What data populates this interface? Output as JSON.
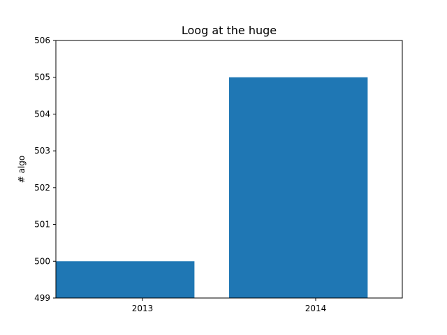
{
  "chart_data": {
    "type": "bar",
    "title": "Loog at the huge",
    "xlabel": "",
    "ylabel": "# algo",
    "ylim": [
      499,
      506
    ],
    "yticks": [
      499,
      500,
      501,
      502,
      503,
      504,
      505,
      506
    ],
    "categories": [
      "2013",
      "2014"
    ],
    "values": [
      500,
      505
    ],
    "color": "#1f77b4",
    "grid": false
  }
}
